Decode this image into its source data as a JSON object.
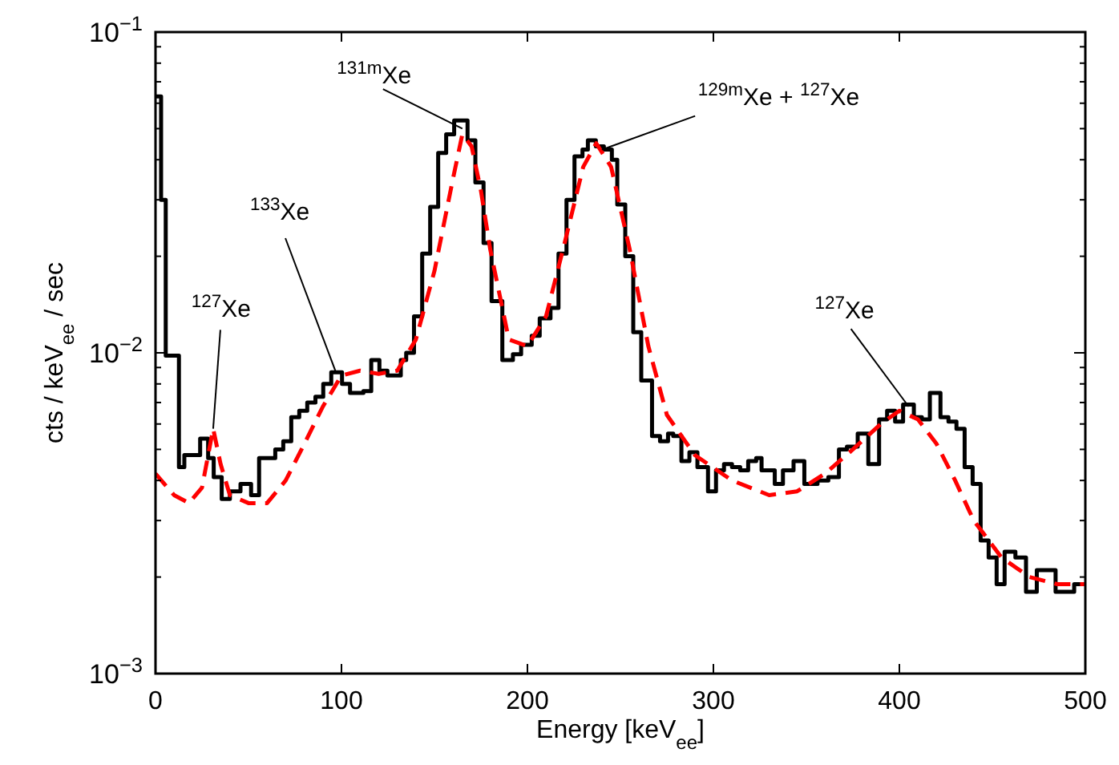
{
  "chart_data": {
    "type": "step",
    "xlabel": "Energy [keV$_{ee}$]",
    "ylabel": "cts / keV$_{ee}$ / sec",
    "log": "y",
    "xlim": [
      0,
      500
    ],
    "ylim": [
      0.001,
      0.1
    ],
    "xticks": [
      0,
      100,
      200,
      300,
      400,
      500
    ],
    "yticks": [
      {
        "value": 0.001,
        "label": "10$^{−3}$"
      },
      {
        "value": 0.002,
        "label": null
      },
      {
        "value": 0.003,
        "label": null
      },
      {
        "value": 0.004,
        "label": null
      },
      {
        "value": 0.005,
        "label": null
      },
      {
        "value": 0.006,
        "label": null
      },
      {
        "value": 0.007,
        "label": null
      },
      {
        "value": 0.008,
        "label": null
      },
      {
        "value": 0.009,
        "label": null
      },
      {
        "value": 0.01,
        "label": "10$^{−2}$"
      },
      {
        "value": 0.02,
        "label": null
      },
      {
        "value": 0.03,
        "label": null
      },
      {
        "value": 0.04,
        "label": null
      },
      {
        "value": 0.05,
        "label": null
      },
      {
        "value": 0.06,
        "label": null
      },
      {
        "value": 0.07,
        "label": null
      },
      {
        "value": 0.08,
        "label": null
      },
      {
        "value": 0.09,
        "label": null
      },
      {
        "value": 0.1,
        "label": "10$^{−1}$"
      }
    ],
    "grid": false,
    "series": [
      {
        "color": "#000000",
        "line_style": "solid",
        "x": [
          0,
          3,
          5.5,
          12.6,
          15.5,
          24,
          28.3,
          31.3,
          35.6,
          40,
          45.7,
          51.4,
          55.7,
          64.4,
          68.7,
          73,
          77.3,
          81.6,
          86,
          90.2,
          94.5,
          100.3,
          104.6,
          111.8,
          116,
          120.4,
          124.7,
          131.9,
          134.8,
          139,
          143.4,
          147.7,
          152,
          156.3,
          160.6,
          167.8,
          172,
          176.4,
          180.7,
          186.5,
          192.2,
          196.6,
          202.3,
          206.6,
          212.4,
          216.7,
          221,
          225.3,
          229.6,
          232.5,
          236.8,
          241.1,
          245.4,
          248.3,
          252.6,
          256.9,
          261.2,
          267,
          271.3,
          275.6,
          278.4,
          282.8,
          287.1,
          291.4,
          297.1,
          301.4,
          305.7,
          310,
          314.4,
          318.7,
          323,
          325.9,
          333,
          337.4,
          343.1,
          348.9,
          356,
          361.8,
          367.5,
          371.8,
          377.6,
          383.3,
          389.1,
          393.4,
          397.7,
          402,
          407.8,
          412.1,
          416.4,
          422.1,
          426.4,
          430.7,
          435.1,
          439.4,
          443.7,
          448,
          452.3,
          456.6,
          462.4,
          468.1,
          473.9,
          484,
          489.7,
          494,
          500
        ],
        "values": [
          0.063,
          0.03,
          0.0098,
          0.0044,
          0.0048,
          0.0054,
          0.0047,
          0.0041,
          0.0035,
          0.0037,
          0.0039,
          0.0036,
          0.0047,
          0.005,
          0.0053,
          0.0063,
          0.0066,
          0.007,
          0.0073,
          0.008,
          0.0087,
          0.008,
          0.0075,
          0.0076,
          0.0095,
          0.0088,
          0.0085,
          0.0095,
          0.01,
          0.013,
          0.0204,
          0.0285,
          0.042,
          0.048,
          0.053,
          0.046,
          0.034,
          0.022,
          0.0145,
          0.0095,
          0.0099,
          0.0106,
          0.0113,
          0.0128,
          0.0138,
          0.0204,
          0.03,
          0.041,
          0.043,
          0.046,
          0.044,
          0.043,
          0.04,
          0.029,
          0.02,
          0.0116,
          0.0082,
          0.0055,
          0.0053,
          0.0056,
          0.0055,
          0.0046,
          0.0049,
          0.0044,
          0.0037,
          0.0043,
          0.0045,
          0.0044,
          0.0043,
          0.0046,
          0.0047,
          0.0043,
          0.0039,
          0.0043,
          0.0046,
          0.0039,
          0.004,
          0.0041,
          0.005,
          0.0051,
          0.0056,
          0.0045,
          0.0062,
          0.0066,
          0.0061,
          0.0069,
          0.0063,
          0.0062,
          0.0075,
          0.0063,
          0.0061,
          0.0058,
          0.0044,
          0.0039,
          0.0026,
          0.0023,
          0.0019,
          0.0024,
          0.0023,
          0.0018,
          0.0021,
          0.0018,
          0.0018,
          0.0019,
          0.0019
        ]
      },
      {
        "type": "line",
        "color": "#ff0000",
        "line_style": "dashed",
        "x": [
          0,
          10,
          18,
          25,
          31,
          35,
          40,
          50,
          60,
          70,
          80,
          90,
          100,
          110,
          120,
          130,
          140,
          150,
          160,
          165,
          170,
          175,
          180,
          190,
          200,
          210,
          220,
          230,
          237,
          245,
          255,
          265,
          275,
          290,
          310,
          330,
          345,
          360,
          375,
          390,
          400,
          410,
          420,
          430,
          440,
          455,
          470,
          485,
          500
        ],
        "values": [
          0.0042,
          0.0036,
          0.0034,
          0.0038,
          0.0058,
          0.0045,
          0.0036,
          0.0034,
          0.0034,
          0.004,
          0.0052,
          0.0068,
          0.0085,
          0.0088,
          0.0086,
          0.0088,
          0.011,
          0.018,
          0.035,
          0.048,
          0.044,
          0.032,
          0.021,
          0.011,
          0.0105,
          0.013,
          0.022,
          0.038,
          0.045,
          0.038,
          0.021,
          0.0105,
          0.0064,
          0.0048,
          0.004,
          0.0036,
          0.0037,
          0.0042,
          0.005,
          0.006,
          0.0066,
          0.0062,
          0.0052,
          0.004,
          0.003,
          0.0023,
          0.002,
          0.0019,
          0.0019
        ]
      }
    ],
    "annotations": [
      {
        "text": "$^{127}$Xe",
        "x": 31,
        "y": 0.0058
      },
      {
        "text": "$^{133}$Xe",
        "x": 97,
        "y": 0.0087
      },
      {
        "text": "$^{131m}$Xe",
        "x": 165,
        "y": 0.05
      },
      {
        "text": "$^{129m}$Xe + $^{127}$Xe",
        "x": 240,
        "y": 0.043
      },
      {
        "text": "$^{127}$Xe",
        "x": 405,
        "y": 0.0068
      }
    ]
  }
}
